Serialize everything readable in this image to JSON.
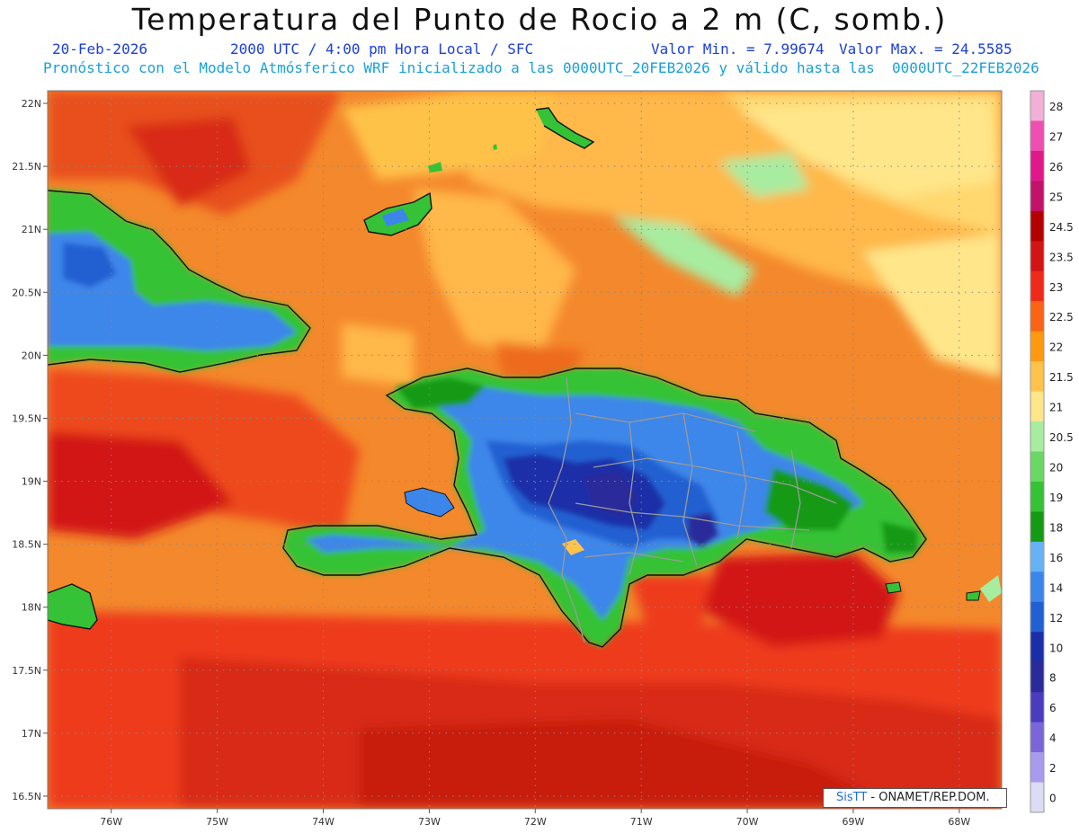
{
  "header": {
    "title": "Temperatura del Punto de Rocio a 2 m (C, somb.)",
    "date": "20-Feb-2026",
    "time_info": "2000 UTC / 4:00 pm Hora Local / SFC",
    "min_value": "Valor Min. = 7.99674",
    "max_value": "Valor Max. = 24.5585",
    "model_info": "Pronóstico con el Modelo Atmósferico WRF inicializado a las 0000UTC_20FEB2026 y válido hasta las  0000UTC_22FEB2026"
  },
  "map": {
    "lat_labels": [
      "22N",
      "21.5N",
      "21N",
      "20.5N",
      "20N",
      "19.5N",
      "19N",
      "18.5N",
      "18N",
      "17.5N",
      "17N",
      "16.5N"
    ],
    "lon_labels": [
      "76W",
      "75W",
      "74W",
      "73W",
      "72W",
      "71W",
      "70W",
      "69W",
      "68W"
    ],
    "lat_values": [
      22,
      21.5,
      21,
      20.5,
      20,
      19.5,
      19,
      18.5,
      18,
      17.5,
      17,
      16.5
    ],
    "lon_values": [
      -76,
      -75,
      -74,
      -73,
      -72,
      -71,
      -70,
      -69,
      -68
    ],
    "extent": {
      "lon_min": -76.6,
      "lon_max": -67.6,
      "lat_min": 16.4,
      "lat_max": 22.1
    }
  },
  "colorbar": {
    "levels": [
      "28",
      "27",
      "26",
      "25",
      "24.5",
      "23.5",
      "23",
      "22.5",
      "22",
      "21.5",
      "21",
      "20.5",
      "20",
      "19",
      "18",
      "16",
      "14",
      "12",
      "10",
      "8",
      "6",
      "4",
      "2",
      "0"
    ],
    "colors": [
      "#f2b0d6",
      "#ee4fb0",
      "#e0188a",
      "#c2126a",
      "#b40000",
      "#d21414",
      "#ee2a1a",
      "#fa6414",
      "#ff9a10",
      "#ffc24a",
      "#ffe68a",
      "#a8eca0",
      "#6ad766",
      "#36c236",
      "#149a14",
      "#66b2f4",
      "#3c86ea",
      "#2060d2",
      "#1a2ea8",
      "#2a2a9a",
      "#4a3cbf",
      "#7a66d8",
      "#a89aee",
      "#dcdcf4"
    ]
  },
  "credit": {
    "sis": "SisTT",
    "org": " - ONAMET/REP.DOM."
  }
}
